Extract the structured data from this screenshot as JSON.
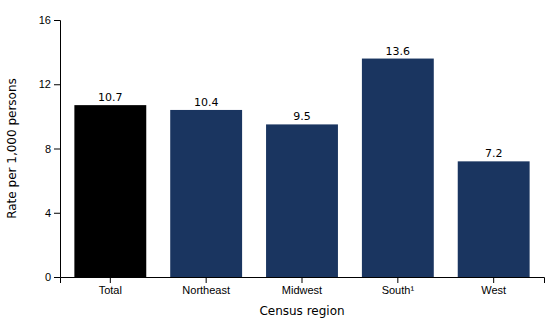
{
  "chart_data": {
    "type": "bar",
    "categories": [
      "Total",
      "Northeast",
      "Midwest",
      "South¹",
      "West"
    ],
    "values": [
      10.7,
      10.4,
      9.5,
      13.6,
      7.2
    ],
    "colors": [
      "#000000",
      "#1a3560",
      "#1a3560",
      "#1a3560",
      "#1a3560"
    ],
    "xlabel": "Census region",
    "ylabel": "Rate per 1,000 persons",
    "ylim": [
      0,
      16
    ],
    "yticks": [
      0,
      4,
      8,
      12,
      16
    ],
    "grid": false,
    "data_labels": true
  }
}
